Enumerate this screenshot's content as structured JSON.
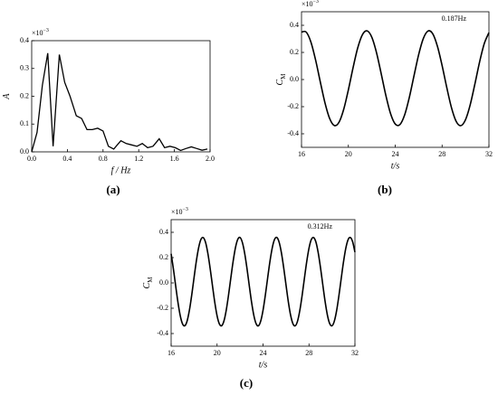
{
  "chart_data": [
    {
      "type": "line",
      "panel_label": "(a)",
      "x_label": "f / Hz",
      "y_label": "A",
      "y_multiplier": "×10",
      "y_multiplier_exp": "−3",
      "xlim": [
        0,
        2
      ],
      "xticks": [
        {
          "value": 0,
          "label": "0.0"
        },
        0.4,
        0.8,
        1.2,
        1.6,
        {
          "value": 2,
          "label": "2.0"
        }
      ],
      "ylim": [
        0,
        0.4
      ],
      "yticks": [
        {
          "value": 0,
          "label": "0.0"
        },
        0.1,
        0.2,
        0.3,
        0.4
      ],
      "x": [
        0,
        0.06,
        0.12,
        0.18,
        0.24,
        0.31,
        0.37,
        0.43,
        0.5,
        0.56,
        0.62,
        0.68,
        0.74,
        0.8,
        0.86,
        0.92,
        1.0,
        1.06,
        1.12,
        1.18,
        1.24,
        1.3,
        1.36,
        1.43,
        1.49,
        1.55,
        1.61,
        1.67,
        1.73,
        1.79,
        1.85,
        1.91,
        1.97
      ],
      "values": [
        0,
        0.07,
        0.24,
        0.355,
        0.02,
        0.35,
        0.25,
        0.2,
        0.13,
        0.12,
        0.08,
        0.08,
        0.085,
        0.075,
        0.02,
        0.01,
        0.04,
        0.03,
        0.025,
        0.02,
        0.03,
        0.015,
        0.02,
        0.047,
        0.015,
        0.02,
        0.015,
        0.005,
        0.012,
        0.018,
        0.012,
        0.006,
        0.01
      ],
      "color": "#000000"
    },
    {
      "type": "line",
      "panel_label": "(b)",
      "x_label": "t/s",
      "y_label": "C",
      "y_label_sub": "M",
      "y_multiplier": "×10",
      "y_multiplier_exp": "−3",
      "annotation": "0.187Hz",
      "xlim": [
        16,
        32
      ],
      "xticks": [
        16,
        20,
        24,
        28,
        32
      ],
      "ylim": [
        -0.5,
        0.5
      ],
      "yticks": [
        -0.4,
        -0.2,
        {
          "value": 0,
          "label": "0.0"
        },
        0.2,
        0.4
      ],
      "x": [
        16,
        16.4,
        16.8,
        17.2,
        17.6,
        18,
        18.4,
        18.8,
        19.2,
        19.6,
        20,
        20.4,
        20.8,
        21.2,
        21.6,
        22,
        22.4,
        22.8,
        23.2,
        23.6,
        24,
        24.4,
        24.8,
        25.2,
        25.6,
        26,
        26.4,
        26.8,
        27.2,
        27.6,
        28,
        28.4,
        28.8,
        29.2,
        29.6,
        30,
        30.4,
        30.8,
        31.2,
        31.6,
        32
      ],
      "values": [
        0.35,
        0.35,
        0.277,
        0.145,
        -0.016,
        -0.171,
        -0.287,
        -0.339,
        -0.315,
        -0.22,
        -0.076,
        0.087,
        0.234,
        0.331,
        0.359,
        0.312,
        0.199,
        0.044,
        -0.117,
        -0.251,
        -0.328,
        -0.332,
        -0.262,
        -0.133,
        0.027,
        0.184,
        0.303,
        0.358,
        0.338,
        0.246,
        0.104,
        -0.059,
        -0.207,
        -0.308,
        -0.34,
        -0.296,
        -0.186,
        -0.033,
        0.129,
        0.265,
        0.346
      ],
      "color": "#000000"
    },
    {
      "type": "line",
      "panel_label": "(c)",
      "x_label": "t/s",
      "y_label": "C",
      "y_label_sub": "M",
      "y_multiplier": "×10",
      "y_multiplier_exp": "−3",
      "annotation": "0.312Hz",
      "xlim": [
        16,
        32
      ],
      "xticks": [
        16,
        20,
        24,
        28,
        32
      ],
      "ylim": [
        -0.5,
        0.5
      ],
      "yticks": [
        -0.4,
        -0.2,
        {
          "value": 0,
          "label": "0.0"
        },
        0.2,
        0.4
      ],
      "x": [
        16,
        16.2,
        16.4,
        16.6,
        16.8,
        17,
        17.2,
        17.4,
        17.6,
        17.8,
        18,
        18.2,
        18.4,
        18.6,
        18.8,
        19,
        19.2,
        19.4,
        19.6,
        19.8,
        20,
        20.2,
        20.4,
        20.6,
        20.8,
        21,
        21.2,
        21.4,
        21.6,
        21.8,
        22,
        22.2,
        22.4,
        22.6,
        22.8,
        23,
        23.2,
        23.4,
        23.6,
        23.8,
        24,
        24.2,
        24.4,
        24.6,
        24.8,
        25,
        25.2,
        25.4,
        25.6,
        25.8,
        26,
        26.2,
        26.4,
        26.6,
        26.8,
        27,
        27.2,
        27.4,
        27.6,
        27.8,
        28,
        28.2,
        28.4,
        28.6,
        28.8,
        29,
        29.2,
        29.4,
        29.6,
        29.8,
        30,
        30.2,
        30.4,
        30.6,
        30.8,
        31,
        31.2,
        31.4,
        31.6,
        31.8,
        32
      ],
      "values": [
        0.23,
        0.109,
        -0.027,
        -0.157,
        -0.262,
        -0.325,
        -0.338,
        -0.298,
        -0.211,
        -0.091,
        0.045,
        0.176,
        0.281,
        0.345,
        0.358,
        0.319,
        0.232,
        0.112,
        -0.023,
        -0.154,
        -0.26,
        -0.324,
        -0.338,
        -0.3,
        -0.214,
        -0.094,
        0.042,
        0.172,
        0.279,
        0.344,
        0.359,
        0.32,
        0.235,
        0.116,
        -0.02,
        -0.151,
        -0.257,
        -0.323,
        -0.339,
        -0.301,
        -0.216,
        -0.097,
        0.038,
        0.169,
        0.276,
        0.343,
        0.359,
        0.322,
        0.238,
        0.119,
        -0.016,
        -0.148,
        -0.255,
        -0.322,
        -0.339,
        -0.303,
        -0.219,
        -0.101,
        0.035,
        0.166,
        0.274,
        0.342,
        0.359,
        0.324,
        0.24,
        0.122,
        -0.013,
        -0.145,
        -0.253,
        -0.321,
        -0.339,
        -0.304,
        -0.222,
        -0.104,
        0.031,
        0.163,
        0.272,
        0.341,
        0.359,
        0.325,
        0.243
      ],
      "color": "#000000"
    }
  ]
}
